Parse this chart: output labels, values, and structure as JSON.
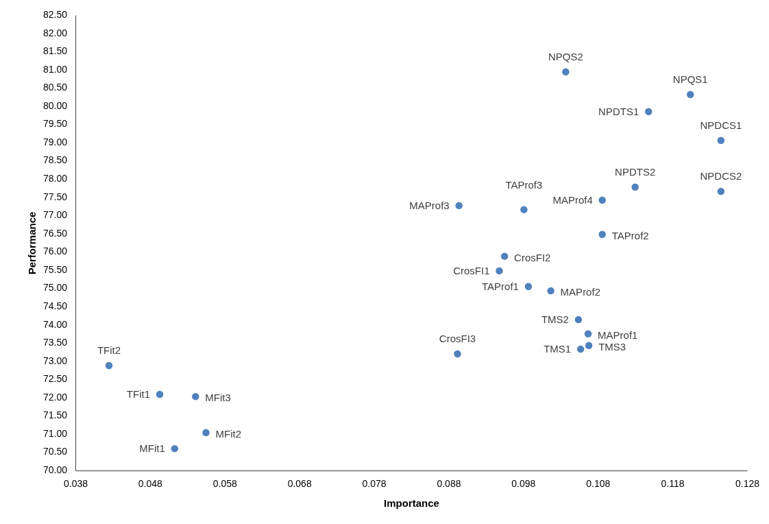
{
  "chart_data": {
    "type": "scatter",
    "xlabel": "Importance",
    "ylabel": "Performance",
    "x": [
      0.1037,
      0.1204,
      0.1148,
      0.1245,
      0.113,
      0.1245,
      0.1086,
      0.0894,
      0.0981,
      0.1086,
      0.0955,
      0.0948,
      0.0987,
      0.1017,
      0.1054,
      0.1067,
      0.1068,
      0.1057,
      0.0892,
      0.0425,
      0.0493,
      0.0541,
      0.0555,
      0.0513
    ],
    "series": [
      {
        "color": "#4f81bd",
        "values": [
          80.94,
          80.32,
          79.85,
          79.06,
          77.78,
          77.66,
          77.42,
          77.27,
          77.16,
          76.48,
          75.88,
          75.48,
          75.05,
          74.93,
          74.14,
          73.75,
          73.43,
          73.33,
          73.2,
          72.88,
          72.09,
          72.03,
          71.04,
          70.6
        ]
      }
    ],
    "annotations": [
      {
        "text": "NPQS2",
        "x": 0.1037,
        "y": 80.94
      },
      {
        "text": "NPQS1",
        "x": 0.1204,
        "y": 80.32
      },
      {
        "text": "NPDTS1",
        "x": 0.1148,
        "y": 79.85
      },
      {
        "text": "NPDCS1",
        "x": 0.1245,
        "y": 79.06
      },
      {
        "text": "NPDTS2",
        "x": 0.113,
        "y": 77.78
      },
      {
        "text": "NPDCS2",
        "x": 0.1245,
        "y": 77.66
      },
      {
        "text": "MAProf4",
        "x": 0.1086,
        "y": 77.42
      },
      {
        "text": "MAProf3",
        "x": 0.0894,
        "y": 77.27
      },
      {
        "text": "TAProf3",
        "x": 0.0981,
        "y": 77.16
      },
      {
        "text": "TAProf2",
        "x": 0.1086,
        "y": 76.48
      },
      {
        "text": "CrosFI2",
        "x": 0.0955,
        "y": 75.88
      },
      {
        "text": "CrosFI1",
        "x": 0.0948,
        "y": 75.48
      },
      {
        "text": "TAProf1",
        "x": 0.0987,
        "y": 75.05
      },
      {
        "text": "MAProf2",
        "x": 0.1017,
        "y": 74.93
      },
      {
        "text": "TMS2",
        "x": 0.1054,
        "y": 74.14
      },
      {
        "text": "MAProf1",
        "x": 0.1067,
        "y": 73.75
      },
      {
        "text": "TMS3",
        "x": 0.1068,
        "y": 73.43
      },
      {
        "text": "TMS1",
        "x": 0.1057,
        "y": 73.33
      },
      {
        "text": "CrosFI3",
        "x": 0.0892,
        "y": 73.2
      },
      {
        "text": "TFit2",
        "x": 0.0425,
        "y": 72.88
      },
      {
        "text": "TFit1",
        "x": 0.0493,
        "y": 72.09
      },
      {
        "text": "MFit3",
        "x": 0.0541,
        "y": 72.03
      },
      {
        "text": "MFit2",
        "x": 0.0555,
        "y": 71.04
      },
      {
        "text": "MFit1",
        "x": 0.0513,
        "y": 70.6
      }
    ],
    "xlim": [
      0.038,
      0.128
    ],
    "xticks": [
      0.038,
      0.048,
      0.058,
      0.068,
      0.078,
      0.088,
      0.098,
      0.108,
      0.118,
      0.128
    ],
    "ylim": [
      70,
      82.5
    ],
    "yticks": [
      {
        "value": 70,
        "label": "70.00"
      },
      {
        "value": 70.5,
        "label": "70.50"
      },
      {
        "value": 71,
        "label": "71.00"
      },
      {
        "value": 71.5,
        "label": "71.50"
      },
      {
        "value": 72,
        "label": "72.00"
      },
      {
        "value": 72.5,
        "label": "72.50"
      },
      {
        "value": 73,
        "label": "73.00"
      },
      {
        "value": 73.5,
        "label": "73.50"
      },
      {
        "value": 74,
        "label": "74.00"
      },
      {
        "value": 74.5,
        "label": "74.50"
      },
      {
        "value": 75,
        "label": "75.00"
      },
      {
        "value": 75.5,
        "label": "75.50"
      },
      {
        "value": 76,
        "label": "76.00"
      },
      {
        "value": 76.5,
        "label": "76.50"
      },
      {
        "value": 77,
        "label": "77.00"
      },
      {
        "value": 77.5,
        "label": "77.50"
      },
      {
        "value": 78,
        "label": "78.00"
      },
      {
        "value": 78.5,
        "label": "78.50"
      },
      {
        "value": 79,
        "label": "79.00"
      },
      {
        "value": 79.5,
        "label": "79.50"
      },
      {
        "value": 80,
        "label": "80.00"
      },
      {
        "value": 80.5,
        "label": "80.50"
      },
      {
        "value": 81,
        "label": "81.00"
      },
      {
        "value": 81.5,
        "label": "81.50"
      },
      {
        "value": 82,
        "label": "82.00"
      },
      {
        "value": 82.5,
        "label": "82.50"
      }
    ],
    "grid": false,
    "marker": "circle"
  }
}
